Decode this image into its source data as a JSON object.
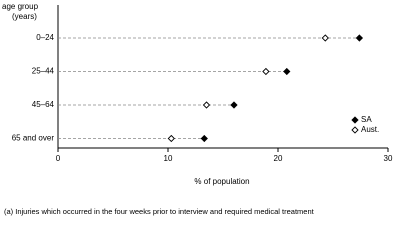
{
  "chart_data": {
    "type": "dot",
    "y_axis_title_lines": [
      "age group",
      "(years)"
    ],
    "categories": [
      "0–24",
      "25–44",
      "45–64",
      "65 and over"
    ],
    "series": [
      {
        "name": "SA",
        "color": "#000000",
        "marker": "filled",
        "values": [
          27.4,
          20.8,
          16.0,
          13.3
        ]
      },
      {
        "name": "Aust.",
        "color": "#000000",
        "marker": "open",
        "values": [
          24.3,
          18.9,
          13.5,
          10.3
        ]
      }
    ],
    "xlim": [
      0,
      30
    ],
    "xticks": [
      0,
      10,
      20,
      30
    ],
    "x_label": "% of population",
    "legend": "lower right",
    "grid": false,
    "footnote": "(a) Injuries which occurred in the four weeks prior to interview and required medical treatment"
  }
}
